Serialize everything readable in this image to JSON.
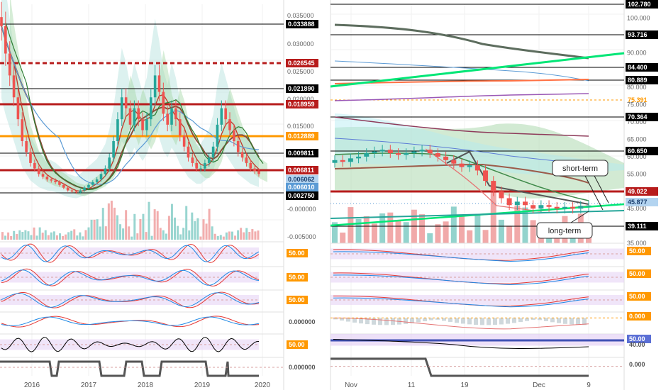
{
  "colors": {
    "red_line": "#b71c1c",
    "orange_line": "#ff9800",
    "teal": "#26a69a",
    "green_trend": "#00e676",
    "blue_ma": "#5c9bd5",
    "purple": "#8e44ad",
    "indicator_band": "#e6d3f5",
    "badge_blue": "#5b9bd5",
    "black": "#000000"
  },
  "chart_data": [
    {
      "type": "candlestick",
      "panel": "left-weekly",
      "y_ticks": [
        "0.035000",
        "0.030000",
        "0.025000",
        "0.020000",
        "0.015000",
        "0.010000",
        "0.005000",
        "-0.000000",
        "-0.005000"
      ],
      "ylim": [
        -0.006,
        0.037
      ],
      "x_ticks": [
        "2016",
        "2017",
        "2018",
        "2019",
        "2020"
      ],
      "price_levels": [
        {
          "value": "0.033888",
          "badge": "black",
          "line": "black"
        },
        {
          "value": "0.026545",
          "badge": "red",
          "line": "red-dashed"
        },
        {
          "value": "0.021890",
          "badge": "black",
          "line": "black"
        },
        {
          "value": "0.018959",
          "badge": "red",
          "line": "red"
        },
        {
          "value": "0.012889",
          "badge": "orange",
          "line": "orange"
        },
        {
          "value": "0.009811",
          "badge": "black",
          "line": "black"
        },
        {
          "value": "0.006811",
          "badge": "red",
          "line": "red"
        },
        {
          "value": "0.006062",
          "badge": "light-blue",
          "line": "none"
        },
        {
          "value": "0.006010",
          "badge": "blue",
          "line": "none"
        },
        {
          "value": "0.002750",
          "badge": "black",
          "line": "black"
        }
      ],
      "series_close": [
        0.033,
        0.028,
        0.024,
        0.02,
        0.016,
        0.012,
        0.01,
        0.008,
        0.007,
        0.006,
        0.0055,
        0.005,
        0.0048,
        0.0045,
        0.004,
        0.0035,
        0.003,
        0.0028,
        0.0026,
        0.003,
        0.0035,
        0.004,
        0.0045,
        0.005,
        0.006,
        0.007,
        0.009,
        0.012,
        0.016,
        0.02,
        0.018,
        0.015,
        0.018,
        0.016,
        0.014,
        0.016,
        0.02,
        0.024,
        0.021,
        0.017,
        0.015,
        0.018,
        0.016,
        0.013,
        0.011,
        0.009,
        0.008,
        0.007,
        0.007,
        0.008,
        0.009,
        0.011,
        0.015,
        0.018,
        0.016,
        0.014,
        0.012,
        0.01,
        0.009,
        0.008,
        0.007,
        0.0065,
        0.006
      ],
      "indicators": [
        {
          "label": "50.00",
          "badge": "orange"
        },
        {
          "label": "50.00",
          "badge": "orange"
        },
        {
          "label": "50.00",
          "badge": "orange"
        },
        {
          "label": "0.000000",
          "badge": "none"
        },
        {
          "label": "50.00",
          "badge": "orange"
        },
        {
          "label": "0.000000",
          "badge": "none"
        }
      ]
    },
    {
      "type": "candlestick",
      "panel": "right-daily",
      "y_ticks": [
        "100.000",
        "90.000",
        "80.000",
        "75.000",
        "70.000",
        "65.000",
        "60.000",
        "55.000",
        "50.000",
        "45.000",
        "40.000",
        "35.000"
      ],
      "ylim": [
        35,
        104
      ],
      "x_ticks": [
        "Nov",
        "11",
        "19",
        "Dec",
        "9"
      ],
      "price_levels": [
        {
          "value": "102.780",
          "badge": "black",
          "line": "black"
        },
        {
          "value": "93.716",
          "badge": "black",
          "line": "black"
        },
        {
          "value": "84.400",
          "badge": "black",
          "line": "black"
        },
        {
          "value": "80.889",
          "badge": "black",
          "line": "black"
        },
        {
          "value": "75.391",
          "badge": "orange-text",
          "line": "orange-dashed"
        },
        {
          "value": "70.364",
          "badge": "black",
          "line": "black"
        },
        {
          "value": "60.650",
          "badge": "black",
          "line": "black"
        },
        {
          "value": "49.022",
          "badge": "red",
          "line": "red"
        },
        {
          "value": "45.877",
          "badge": "light-blue",
          "line": "dotted"
        },
        {
          "value": "39.111",
          "badge": "black",
          "line": "black"
        }
      ],
      "series_close": [
        59,
        58.5,
        59.5,
        60,
        61,
        61.5,
        62,
        61,
        60.5,
        61,
        61.5,
        62,
        61,
        60,
        59,
        58,
        57,
        57.5,
        56,
        53,
        50,
        48,
        46,
        47,
        46,
        45,
        46,
        45.5,
        45,
        45.5,
        45,
        45.8,
        45.9
      ],
      "annotations": [
        "short-term",
        "long-term"
      ],
      "indicators": [
        {
          "label": "50.00",
          "badge": "orange"
        },
        {
          "label": "50.00",
          "badge": "orange"
        },
        {
          "label": "50.00",
          "badge": "orange"
        },
        {
          "label": "0.000",
          "badge": "orange"
        },
        {
          "label": "50.00",
          "badge": "blue"
        },
        {
          "label": "40.00",
          "badge": "none"
        },
        {
          "label": "0.000",
          "badge": "none"
        }
      ]
    }
  ]
}
